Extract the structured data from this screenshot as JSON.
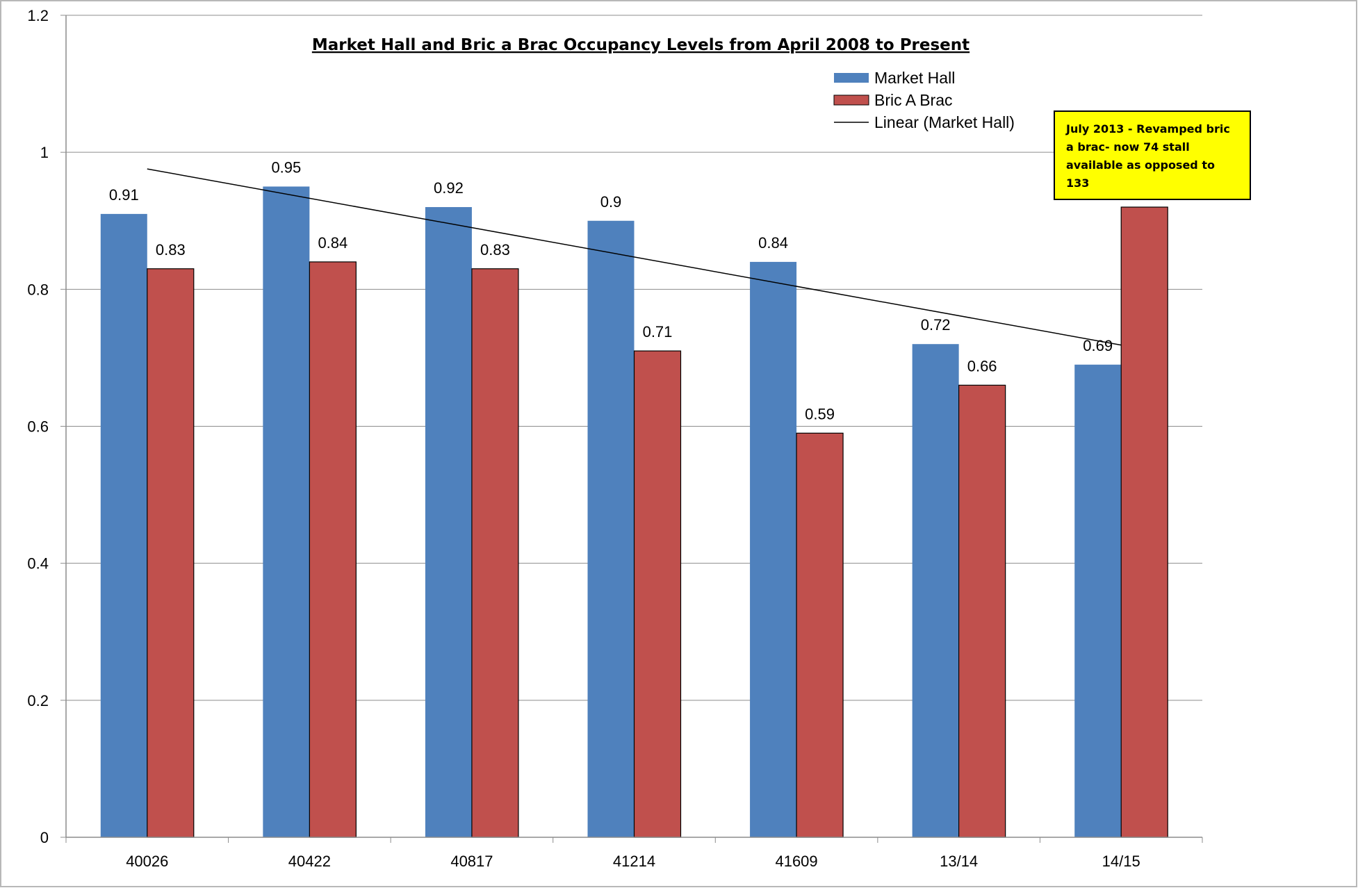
{
  "chart_data": {
    "type": "bar",
    "title": "Market Hall and Bric a Brac Occupancy Levels from April 2008 to Present",
    "categories": [
      "40026",
      "40422",
      "40817",
      "41214",
      "41609",
      "13/14",
      "14/15"
    ],
    "series": [
      {
        "name": "Market Hall",
        "values": [
          0.91,
          0.95,
          0.92,
          0.9,
          0.84,
          0.72,
          0.69
        ],
        "color": "#4f81bd"
      },
      {
        "name": "Bric  A Brac",
        "values": [
          0.83,
          0.84,
          0.83,
          0.71,
          0.59,
          0.66,
          0.92
        ],
        "color": "#c0504d"
      }
    ],
    "data_labels": {
      "Market Hall": [
        "0.91",
        "0.95",
        "0.92",
        "0.9",
        "0.84",
        "0.72",
        "0.69"
      ],
      "Bric  A Brac": [
        "0.83",
        "0.84",
        "0.83",
        "0.71",
        "0.59",
        "0.66",
        ""
      ]
    },
    "trendline": {
      "name": "Linear (Market Hall)",
      "type": "linear",
      "series": "Market Hall",
      "color": "#000000"
    },
    "y_ticks": [
      "0",
      "0.2",
      "0.4",
      "0.6",
      "0.8",
      "1",
      "1.2"
    ],
    "ylim": [
      0,
      1.2
    ],
    "xlabel": "",
    "ylabel": "",
    "grid": true,
    "legend_position": "top-right",
    "annotation": {
      "text": "July 2013 - Revamped bric a brac- now 74 stall available as opposed to 133",
      "background": "#ffff00",
      "attached_to": "14/15"
    }
  }
}
